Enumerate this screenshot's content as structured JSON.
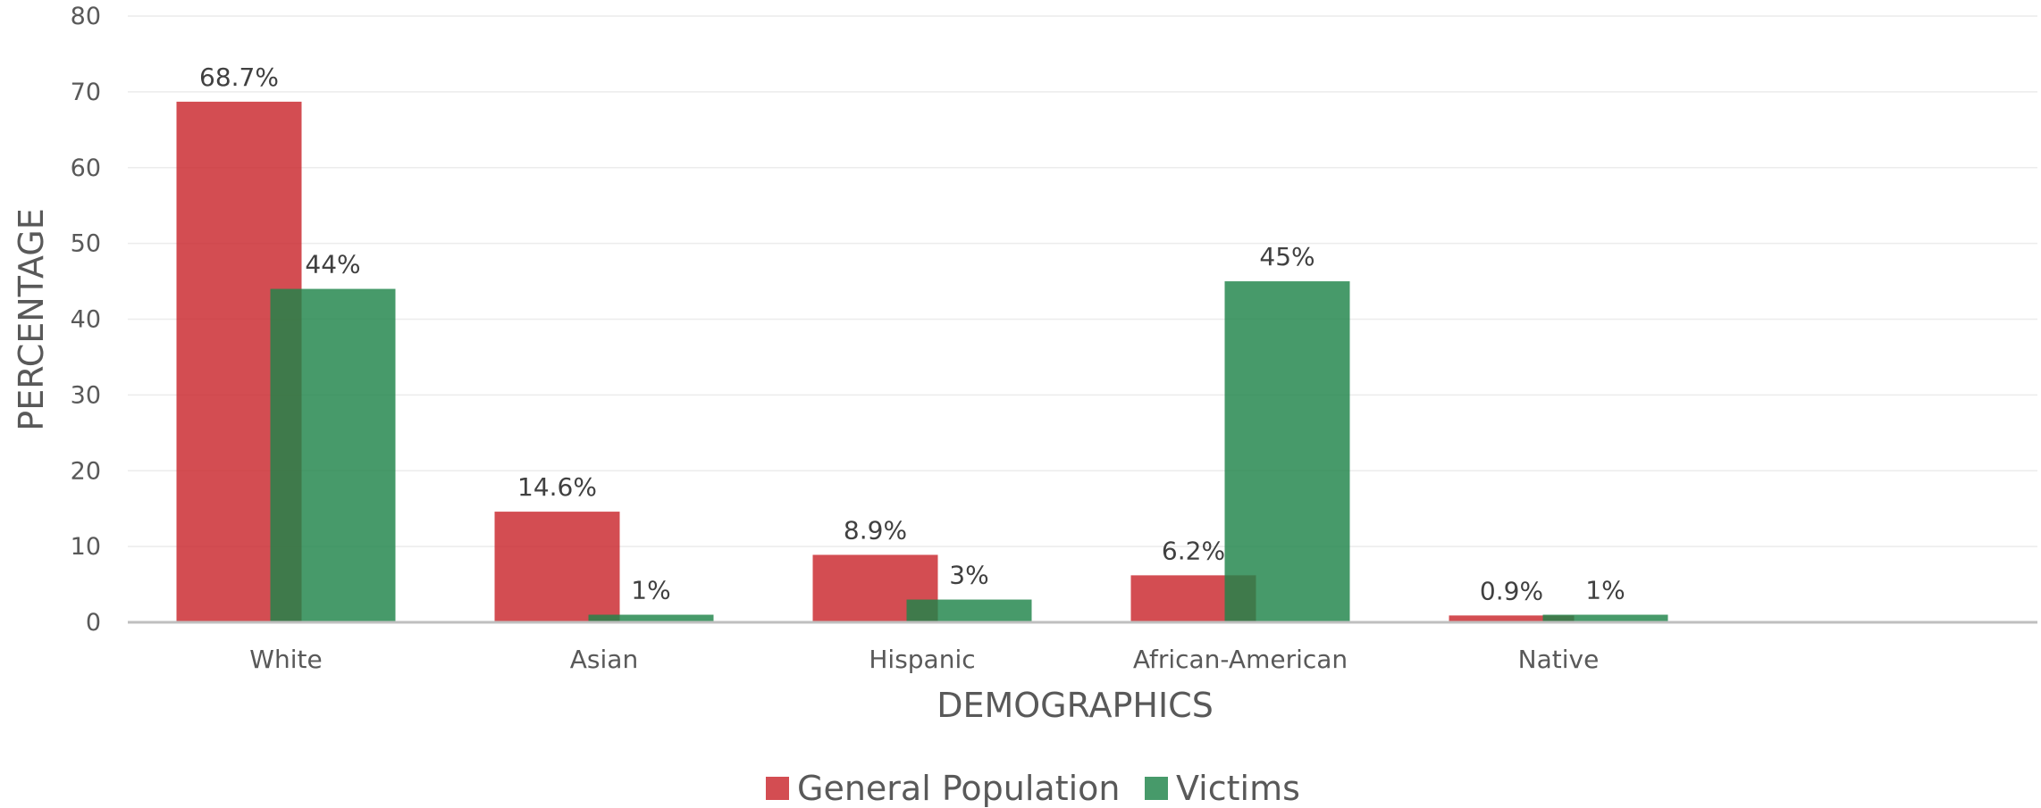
{
  "chart_data": {
    "type": "bar",
    "title": "",
    "xlabel": "DEMOGRAPHICS",
    "ylabel": "PERCENTAGE",
    "ylim": [
      0,
      80
    ],
    "yticks": [
      0,
      10,
      20,
      30,
      40,
      50,
      60,
      70,
      80
    ],
    "grid": true,
    "legend_position": "bottom",
    "categories": [
      "White",
      "Asian",
      "Hispanic",
      "African-American",
      "Native"
    ],
    "series": [
      {
        "name": "General Population",
        "color": "#C9262C",
        "values": [
          68.7,
          14.6,
          8.9,
          6.2,
          0.9
        ],
        "labels": [
          "68.7%",
          "14.6%",
          "8.9%",
          "6.2%",
          "0.9%"
        ]
      },
      {
        "name": "Victims",
        "color": "#1E8449",
        "values": [
          44,
          1,
          3,
          45,
          1
        ],
        "labels": [
          "44%",
          "1%",
          "3%",
          "45%",
          "1%"
        ]
      }
    ]
  }
}
